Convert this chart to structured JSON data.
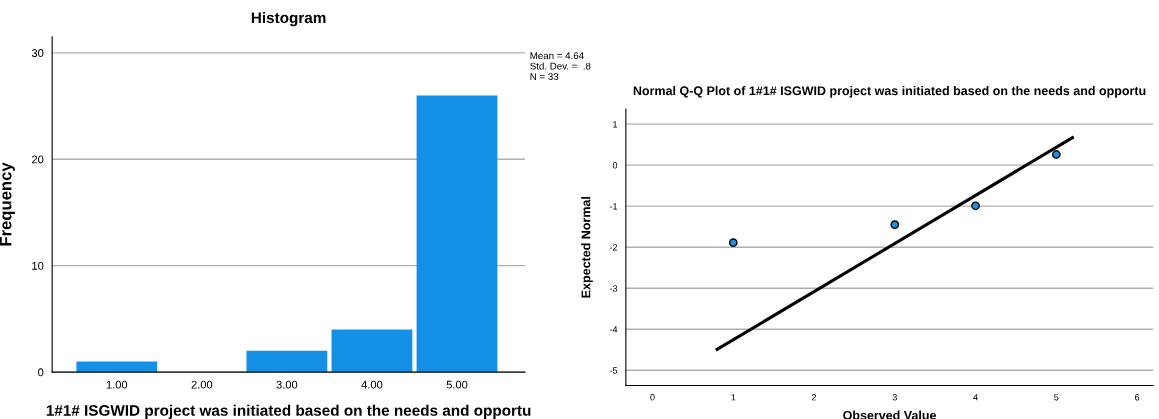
{
  "chart_data": [
    {
      "type": "bar",
      "title": "Histogram",
      "xlabel": "1#1# ISGWID project was initiated based on the needs and opportu",
      "ylabel": "Frequency",
      "categories": [
        "1.00",
        "2.00",
        "3.00",
        "4.00",
        "5.00"
      ],
      "values": [
        1,
        0,
        2,
        4,
        26
      ],
      "color": "#1490e6",
      "ylim": [
        0,
        31.5
      ],
      "yticks": [
        0,
        10,
        20,
        30
      ],
      "grid": "y",
      "annotations": [
        "Mean = 4.64\nStd. Dev. =  .8\nN = 33"
      ]
    },
    {
      "type": "scatter",
      "title": "Normal Q-Q Plot of 1#1# ISGWID project was initiated based on the needs and opportu",
      "xlabel": "Observed Value",
      "ylabel": "Expected Normal",
      "series": [
        {
          "type": "scatter",
          "marker": "circle",
          "color": "#1f8fe0",
          "x": [
            1,
            3,
            4,
            5
          ],
          "values": [
            -1.89,
            -1.45,
            -0.99,
            0.26
          ]
        },
        {
          "type": "line",
          "color": "#000000",
          "x": [
            0.8,
            5.2
          ],
          "values": [
            -4.49,
            0.67
          ]
        }
      ],
      "xlim": [
        -0.33,
        6.2
      ],
      "xticks": [
        0,
        1,
        2,
        3,
        4,
        5,
        6
      ],
      "ylim": [
        -5.37,
        1.37
      ],
      "yticks": [
        -5,
        -4,
        -3,
        -2,
        -1,
        0,
        1
      ],
      "grid": "y"
    }
  ]
}
